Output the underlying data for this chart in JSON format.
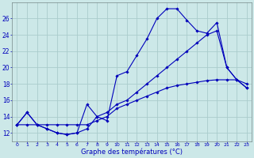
{
  "xlabel": "Graphe des températures (°C)",
  "background_color": "#cce8e8",
  "grid_color": "#aacccc",
  "line_color": "#0000bb",
  "hours": [
    0,
    1,
    2,
    3,
    4,
    5,
    6,
    7,
    8,
    9,
    10,
    11,
    12,
    13,
    14,
    15,
    16,
    17,
    18,
    19,
    20,
    21,
    22,
    23
  ],
  "curve1": [
    13.0,
    14.5,
    13.0,
    12.5,
    12.0,
    11.8,
    12.0,
    15.5,
    14.0,
    13.5,
    19.0,
    19.5,
    21.5,
    23.5,
    26.0,
    27.2,
    27.2,
    25.8,
    24.5,
    24.2,
    25.5,
    20.0,
    18.5,
    17.5
  ],
  "curve2": [
    13.0,
    14.5,
    13.0,
    12.5,
    12.0,
    11.8,
    12.0,
    12.5,
    14.0,
    14.5,
    15.5,
    16.0,
    17.0,
    18.0,
    19.0,
    20.0,
    21.0,
    22.0,
    23.0,
    24.0,
    24.5,
    20.0,
    18.5,
    17.5
  ],
  "curve3": [
    13.0,
    13.0,
    13.0,
    13.0,
    13.0,
    13.0,
    13.0,
    13.0,
    13.5,
    14.0,
    15.0,
    15.5,
    16.0,
    16.5,
    17.0,
    17.5,
    17.8,
    18.0,
    18.2,
    18.4,
    18.5,
    18.5,
    18.5,
    18.0
  ],
  "ylim": [
    11,
    28
  ],
  "xlim": [
    -0.5,
    23.5
  ],
  "yticks": [
    12,
    14,
    16,
    18,
    20,
    22,
    24,
    26
  ],
  "xticks": [
    0,
    1,
    2,
    3,
    4,
    5,
    6,
    7,
    8,
    9,
    10,
    11,
    12,
    13,
    14,
    15,
    16,
    17,
    18,
    19,
    20,
    21,
    22,
    23
  ]
}
